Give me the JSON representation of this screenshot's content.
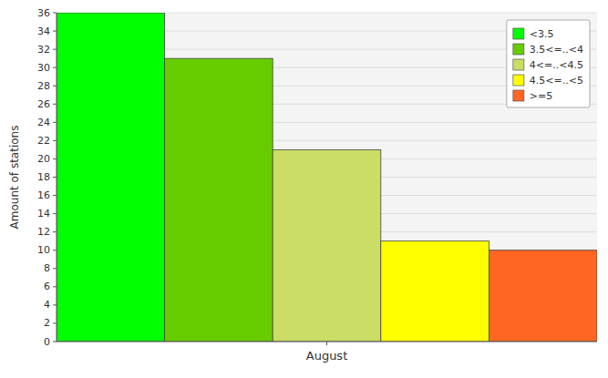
{
  "chart_data": {
    "type": "bar",
    "ylabel": "Amount of stations",
    "categories": [
      "August"
    ],
    "series": [
      {
        "name": "<3.5",
        "color": "#00ff00",
        "values": [
          36
        ]
      },
      {
        "name": "3.5<=..<4",
        "color": "#66cc00",
        "values": [
          31
        ]
      },
      {
        "name": "4<=..<4.5",
        "color": "#ccdd66",
        "values": [
          21
        ]
      },
      {
        "name": "4.5<=..<5",
        "color": "#ffff00",
        "values": [
          11
        ]
      },
      {
        "name": ">=5",
        "color": "#ff6622",
        "values": [
          10
        ]
      }
    ],
    "ylim": [
      0,
      36
    ],
    "yticks": [
      0,
      2,
      4,
      6,
      8,
      10,
      12,
      14,
      16,
      18,
      20,
      22,
      24,
      26,
      28,
      30,
      32,
      34,
      36
    ],
    "grid": true,
    "legend": "upper right"
  }
}
